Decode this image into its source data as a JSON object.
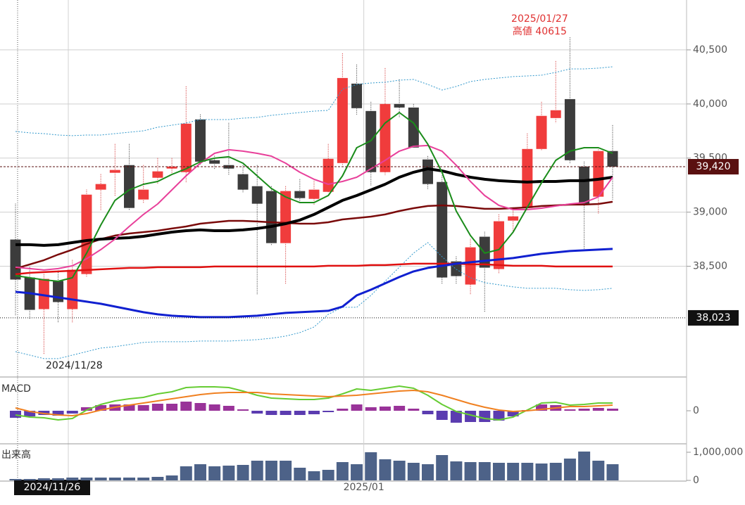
{
  "chart_data": [
    {
      "type": "candlestick",
      "ylim": [
        37483,
        40961
      ],
      "yticks": [
        {
          "value": 38500,
          "label": "38,500"
        },
        {
          "value": 39000,
          "label": "39,000"
        },
        {
          "value": 39500,
          "label": "39,500"
        },
        {
          "value": 40000,
          "label": "40,000"
        },
        {
          "value": 40500,
          "label": "40,500"
        }
      ],
      "grid": true,
      "up_color": "#f03c3c",
      "down_color": "#3c3c3c",
      "x_axis_label": "2025/01",
      "cursor_date": "2024/11/26",
      "open": [
        38747,
        38396,
        38104,
        38364,
        38104,
        38428,
        39208,
        39364,
        39435,
        39117,
        39318,
        39403,
        39370,
        39857,
        39480,
        39435,
        39351,
        39240,
        39195,
        38714,
        39195,
        39123,
        39188,
        39454,
        40188,
        39935,
        39370,
        40000,
        39967,
        39487,
        39279,
        38545,
        38331,
        38773,
        38474,
        38922,
        39039,
        39584,
        39870,
        40045,
        39422,
        39143,
        39565
      ],
      "high": [
        39078,
        38493,
        38428,
        38461,
        38558,
        39208,
        39351,
        39630,
        39630,
        39435,
        39500,
        39500,
        40162,
        39903,
        39520,
        39825,
        39435,
        39435,
        39240,
        39240,
        39305,
        39305,
        39630,
        40468,
        40364,
        40019,
        40331,
        40227,
        40000,
        39519,
        39338,
        38591,
        38753,
        38818,
        38980,
        39045,
        39727,
        40019,
        40396,
        40615,
        39467,
        39597,
        39805
      ],
      "low": [
        38039,
        38006,
        37682,
        37974,
        37974,
        38396,
        39013,
        39143,
        39013,
        39078,
        39260,
        39338,
        39273,
        39435,
        39400,
        39338,
        39175,
        38234,
        38688,
        38331,
        39078,
        39065,
        39175,
        39428,
        39903,
        39240,
        39338,
        39870,
        39597,
        39208,
        38331,
        38331,
        38234,
        38071,
        38428,
        38818,
        39013,
        39565,
        39825,
        39454,
        38656,
        38980,
        39117
      ],
      "close": [
        38377,
        38097,
        38383,
        38169,
        38467,
        39162,
        39260,
        39390,
        39039,
        39208,
        39377,
        39422,
        39818,
        39467,
        39448,
        39403,
        39208,
        39078,
        38714,
        39195,
        39130,
        39208,
        39493,
        40240,
        39961,
        39370,
        40000,
        39967,
        39597,
        39260,
        38396,
        38409,
        38675,
        38487,
        38916,
        38961,
        39584,
        39890,
        39942,
        39480,
        39078,
        39565,
        39420
      ],
      "series": [
        {
          "color": "#3399cc",
          "width": 1,
          "style": "dotted",
          "values": [
            39746,
            39733,
            39726,
            39713,
            39707,
            39713,
            39713,
            39726,
            39739,
            39752,
            39785,
            39804,
            39824,
            39856,
            39856,
            39856,
            39869,
            39876,
            39895,
            39908,
            39921,
            39934,
            39941,
            40136,
            40181,
            40194,
            40201,
            40220,
            40227,
            40181,
            40129,
            40162,
            40207,
            40227,
            40240,
            40253,
            40259,
            40266,
            40292,
            40324,
            40324,
            40331,
            40344
          ]
        },
        {
          "color": "#3399cc",
          "width": 1,
          "style": "dotted",
          "values": [
            37711,
            37679,
            37646,
            37646,
            37679,
            37711,
            37744,
            37757,
            37776,
            37796,
            37802,
            37802,
            37802,
            37809,
            37809,
            37809,
            37815,
            37822,
            37835,
            37854,
            37887,
            37939,
            38056,
            38121,
            38121,
            38231,
            38361,
            38491,
            38621,
            38719,
            38589,
            38472,
            38394,
            38348,
            38329,
            38309,
            38296,
            38296,
            38296,
            38283,
            38277,
            38283,
            38296
          ]
        },
        {
          "color": "#e01010",
          "width": 2.5,
          "style": "solid",
          "values": [
            38426,
            38439,
            38446,
            38452,
            38459,
            38465,
            38472,
            38478,
            38485,
            38485,
            38491,
            38491,
            38491,
            38491,
            38498,
            38498,
            38498,
            38498,
            38498,
            38498,
            38498,
            38498,
            38504,
            38504,
            38504,
            38511,
            38511,
            38517,
            38524,
            38524,
            38524,
            38524,
            38517,
            38517,
            38511,
            38504,
            38504,
            38504,
            38498,
            38498,
            38498,
            38498,
            38498
          ]
        },
        {
          "color": "#1020d0",
          "width": 3,
          "style": "solid",
          "values": [
            38264,
            38251,
            38231,
            38212,
            38192,
            38173,
            38153,
            38127,
            38101,
            38075,
            38056,
            38043,
            38036,
            38030,
            38030,
            38030,
            38036,
            38043,
            38056,
            38069,
            38075,
            38082,
            38088,
            38127,
            38231,
            38283,
            38342,
            38400,
            38452,
            38485,
            38504,
            38524,
            38537,
            38550,
            38563,
            38576,
            38595,
            38615,
            38628,
            38641,
            38647,
            38654,
            38660
          ]
        },
        {
          "color": "#7a0a0a",
          "width": 2.5,
          "style": "solid",
          "values": [
            38478,
            38517,
            38556,
            38608,
            38654,
            38706,
            38751,
            38784,
            38803,
            38816,
            38829,
            38849,
            38868,
            38894,
            38907,
            38920,
            38920,
            38914,
            38907,
            38901,
            38894,
            38894,
            38907,
            38933,
            38946,
            38959,
            38979,
            39011,
            39037,
            39057,
            39063,
            39057,
            39044,
            39031,
            39031,
            39037,
            39044,
            39057,
            39063,
            39070,
            39070,
            39076,
            39096
          ]
        },
        {
          "color": "#000000",
          "width": 4,
          "style": "solid",
          "values": [
            38699,
            38699,
            38693,
            38699,
            38719,
            38738,
            38751,
            38758,
            38764,
            38777,
            38797,
            38816,
            38829,
            38836,
            38829,
            38829,
            38836,
            38849,
            38868,
            38894,
            38927,
            38979,
            39044,
            39109,
            39154,
            39206,
            39258,
            39323,
            39369,
            39401,
            39382,
            39349,
            39323,
            39304,
            39291,
            39284,
            39278,
            39284,
            39284,
            39291,
            39291,
            39304,
            39323
          ]
        },
        {
          "color": "#e8409a",
          "width": 2,
          "style": "solid",
          "values": [
            38491,
            38478,
            38465,
            38478,
            38504,
            38569,
            38654,
            38751,
            38868,
            38979,
            39076,
            39206,
            39336,
            39453,
            39544,
            39577,
            39564,
            39544,
            39518,
            39453,
            39369,
            39304,
            39258,
            39284,
            39323,
            39401,
            39479,
            39564,
            39609,
            39616,
            39564,
            39434,
            39284,
            39154,
            39063,
            39024,
            39024,
            39037,
            39057,
            39076,
            39089,
            39141,
            39323
          ]
        },
        {
          "color": "#1a8c1a",
          "width": 2,
          "style": "solid",
          "values": [
            38413,
            38394,
            38374,
            38361,
            38394,
            38621,
            38881,
            39109,
            39206,
            39258,
            39284,
            39349,
            39401,
            39466,
            39499,
            39512,
            39453,
            39336,
            39219,
            39141,
            39089,
            39089,
            39154,
            39336,
            39596,
            39661,
            39824,
            39921,
            39824,
            39629,
            39369,
            39011,
            38784,
            38621,
            38654,
            38816,
            39044,
            39271,
            39479,
            39564,
            39596,
            39596,
            39544
          ]
        }
      ],
      "price_labels": [
        {
          "value": 39420,
          "label": "39,420",
          "color": "#5a1010"
        },
        {
          "value": 38023,
          "label": "38,023",
          "color": "#111111"
        }
      ],
      "annotations": [
        {
          "text": "2025/01/27",
          "color": "#e03030"
        },
        {
          "text": "高値 40615",
          "color": "#e03030"
        },
        {
          "text": "2024/11/28",
          "color": "#222222"
        }
      ]
    },
    {
      "type": "macd",
      "title": "MACD",
      "ylim": [
        -276,
        282
      ],
      "yticks": [
        0
      ],
      "series": [
        {
          "color": "#66cc33",
          "width": 2,
          "style": "solid",
          "values": [
            -36,
            -54,
            -60,
            -78,
            -66,
            6,
            54,
            84,
            102,
            114,
            144,
            162,
            198,
            204,
            204,
            198,
            168,
            132,
            108,
            102,
            96,
            96,
            108,
            144,
            186,
            174,
            192,
            210,
            192,
            132,
            54,
            -6,
            -36,
            -66,
            -78,
            -54,
            6,
            66,
            72,
            48,
            54,
            66,
            66
          ]
        },
        {
          "color": "#f08020",
          "width": 2,
          "style": "solid",
          "values": [
            24,
            -6,
            -24,
            -36,
            -42,
            -24,
            6,
            30,
            48,
            66,
            84,
            102,
            120,
            138,
            150,
            156,
            156,
            156,
            144,
            138,
            132,
            126,
            120,
            126,
            132,
            144,
            156,
            168,
            174,
            162,
            132,
            96,
            60,
            30,
            6,
            -6,
            0,
            12,
            24,
            36,
            36,
            42,
            48
          ]
        }
      ],
      "histogram": {
        "pos_color": "#993399",
        "neg_color": "#5b3cb0",
        "values": [
          -60,
          -48,
          -36,
          -42,
          -24,
          30,
          48,
          54,
          54,
          48,
          60,
          60,
          78,
          66,
          54,
          42,
          12,
          -24,
          -36,
          -36,
          -36,
          -30,
          -12,
          18,
          54,
          30,
          36,
          42,
          18,
          -30,
          -78,
          -102,
          -96,
          -96,
          -84,
          -48,
          6,
          54,
          48,
          12,
          18,
          24,
          18
        ]
      }
    },
    {
      "type": "bar",
      "title": "出来高",
      "ylim": [
        0,
        1275000
      ],
      "yticks": [
        0,
        {
          "value": 1000000,
          "label": "1,000,000"
        }
      ],
      "color": "#4d6288",
      "values": [
        50000,
        50000,
        75000,
        75000,
        100000,
        100000,
        100000,
        100000,
        100000,
        100000,
        125000,
        175000,
        500000,
        575000,
        500000,
        525000,
        550000,
        700000,
        700000,
        700000,
        450000,
        325000,
        375000,
        650000,
        575000,
        1000000,
        750000,
        700000,
        625000,
        575000,
        900000,
        675000,
        650000,
        650000,
        625000,
        625000,
        625000,
        600000,
        625000,
        775000,
        1025000,
        700000,
        575000
      ]
    }
  ]
}
